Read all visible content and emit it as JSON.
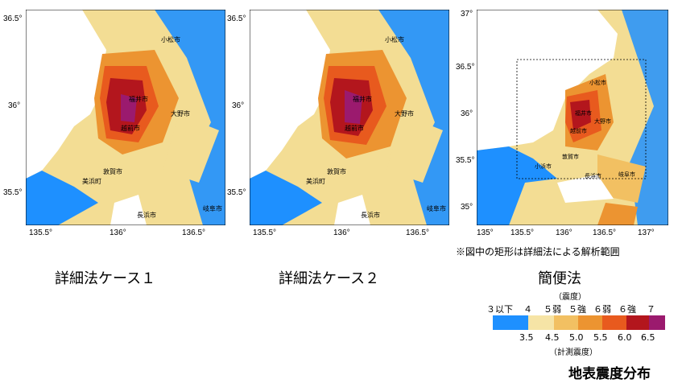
{
  "maps": [
    {
      "caption": "詳細法ケース１",
      "x_ticks": [
        "135.5°",
        "136°",
        "136.5°"
      ],
      "y_ticks": [
        "36.5°",
        "36°",
        "35.5°"
      ],
      "places": [
        "小松市",
        "福井市",
        "越前市",
        "大野市",
        "敦賀市",
        "美浜町",
        "長浜市",
        "岐阜市"
      ]
    },
    {
      "caption": "詳細法ケース２",
      "x_ticks": [
        "135.5°",
        "136°",
        "136.5°"
      ],
      "y_ticks": [
        "36.5°",
        "36°",
        "35.5°"
      ],
      "places": [
        "小松市",
        "福井市",
        "越前市",
        "大野市",
        "敦賀市",
        "美浜町",
        "長浜市",
        "岐阜市"
      ]
    },
    {
      "caption": "簡便法",
      "x_ticks": [
        "135°",
        "135.5°",
        "136°",
        "136.5°",
        "137°"
      ],
      "y_ticks": [
        "37°",
        "36.5°",
        "36°",
        "35.5°",
        "35°"
      ],
      "places": [
        "小松市",
        "福井市",
        "越前市",
        "大野市",
        "敦賀市",
        "小浜市",
        "長浜市",
        "岐阜市"
      ]
    }
  ],
  "note": "※図中の矩形は詳細法による解析範囲",
  "legend": {
    "title_top": "（震度）",
    "intensity_classes": [
      "３以下",
      "４",
      "５弱",
      "５強",
      "６弱",
      "６強",
      "７"
    ],
    "colors": [
      "#1e90ff",
      "#f6e4a6",
      "#f2c062",
      "#ec9431",
      "#e85a1e",
      "#b3161d",
      "#9b1a6e"
    ],
    "boundaries": [
      "3.5",
      "4.5",
      "5.0",
      "5.5",
      "6.0",
      "6.5"
    ],
    "title_bottom": "（計測震度）"
  },
  "title": "地表震度分布"
}
